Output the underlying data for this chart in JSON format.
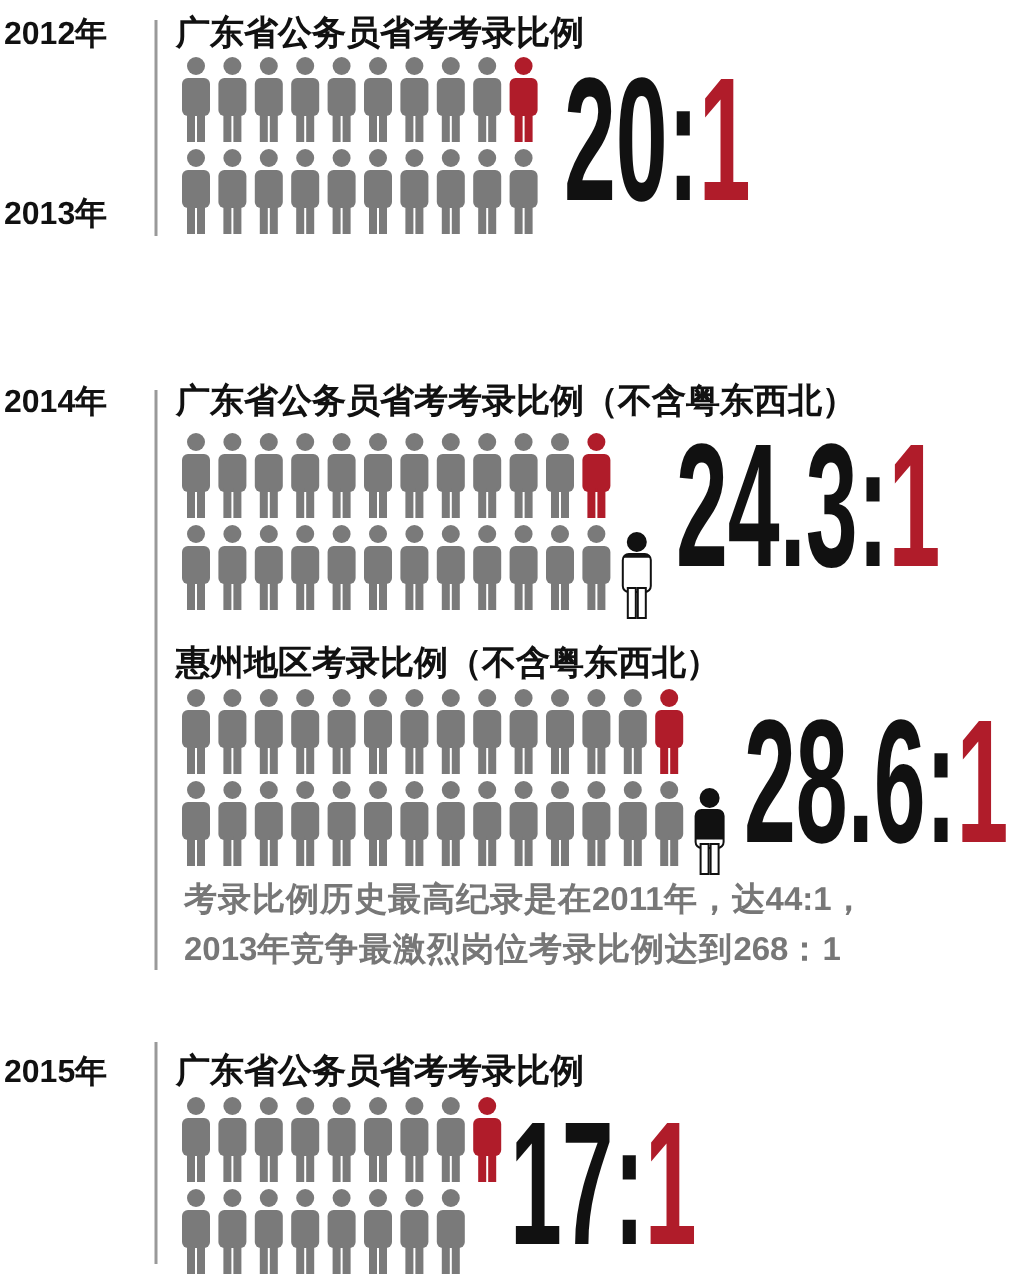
{
  "chart_data": [
    {
      "type": "other",
      "title": "广东省公务员省考考录比例",
      "values": [
        20,
        1
      ],
      "value_labels": [
        "20:",
        "1"
      ],
      "colors": [
        "#111111",
        "#b01c2a"
      ],
      "annotations": [
        "2012年",
        "2013年"
      ]
    },
    {
      "type": "other",
      "title": "广东省公务员省考考录比例（不含粤东西北）",
      "values": [
        24.3,
        1
      ],
      "value_labels": [
        "24.3:",
        "1"
      ],
      "colors": [
        "#111111",
        "#b01c2a"
      ],
      "annotations": [
        "2014年"
      ]
    },
    {
      "type": "other",
      "title": "惠州地区考录比例（不含粤东西北）",
      "values": [
        28.6,
        1
      ],
      "value_labels": [
        "28.6:",
        "1"
      ],
      "colors": [
        "#111111",
        "#b01c2a"
      ],
      "annotations": [
        "考录比例历史最高纪录是在2011年，达44:1，",
        "2013年竞争最激烈岗位考录比例达到268：1"
      ]
    },
    {
      "type": "other",
      "title": "广东省公务员省考考录比例",
      "values": [
        17,
        1
      ],
      "value_labels": [
        "17:",
        "1"
      ],
      "colors": [
        "#111111",
        "#b01c2a"
      ],
      "annotations": [
        "2015年"
      ]
    }
  ]
}
